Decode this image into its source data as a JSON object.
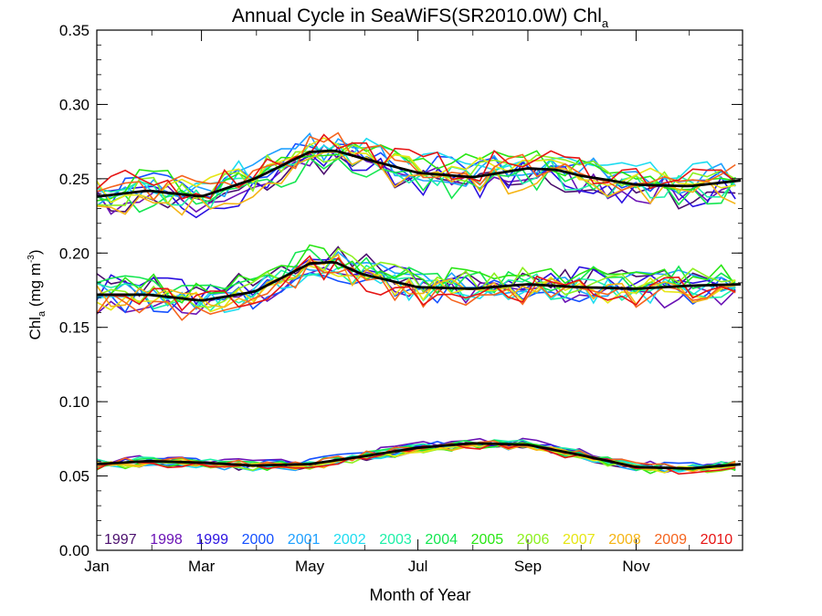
{
  "chart_data": {
    "type": "line",
    "title": "Annual Cycle in SeaWiFS(SR2010.0W) Chl",
    "title_subscript": "a",
    "xlabel": "Month of Year",
    "ylabel_main": "Chl",
    "ylabel_sub": "a",
    "ylabel_unit": " (mg m",
    "ylabel_sup": "-3",
    "ylabel_close": ")",
    "xlim": [
      1,
      365
    ],
    "ylim": [
      0,
      0.35
    ],
    "x_ticks": [
      {
        "label": "Jan",
        "day": 1
      },
      {
        "label": "Mar",
        "day": 60
      },
      {
        "label": "May",
        "day": 121
      },
      {
        "label": "Jul",
        "day": 182
      },
      {
        "label": "Sep",
        "day": 244
      },
      {
        "label": "Nov",
        "day": 305
      }
    ],
    "y_ticks": [
      "0.00",
      "0.05",
      "0.10",
      "0.15",
      "0.20",
      "0.25",
      "0.30",
      "0.35"
    ],
    "y_tick_values": [
      0,
      0.05,
      0.1,
      0.15,
      0.2,
      0.25,
      0.3,
      0.35
    ],
    "grid": false,
    "legend_placement": "bottom",
    "years": [
      {
        "label": "1997",
        "color": "#4b0f6e"
      },
      {
        "label": "1998",
        "color": "#6a12b5"
      },
      {
        "label": "1999",
        "color": "#2a10e0"
      },
      {
        "label": "2000",
        "color": "#1450ff"
      },
      {
        "label": "2001",
        "color": "#1ea0ff"
      },
      {
        "label": "2002",
        "color": "#1edcf0"
      },
      {
        "label": "2003",
        "color": "#1ef0a8"
      },
      {
        "label": "2004",
        "color": "#14e650"
      },
      {
        "label": "2005",
        "color": "#28e614"
      },
      {
        "label": "2006",
        "color": "#8cf01e"
      },
      {
        "label": "2007",
        "color": "#e6e614"
      },
      {
        "label": "2008",
        "color": "#f5b414"
      },
      {
        "label": "2009",
        "color": "#f5641e"
      },
      {
        "label": "2010",
        "color": "#e61414"
      }
    ],
    "groups": [
      {
        "name": "upper",
        "mean_x": [
          1,
          30,
          60,
          90,
          121,
          135,
          150,
          182,
          213,
          244,
          260,
          274,
          305,
          335,
          365
        ],
        "mean_y": [
          0.238,
          0.242,
          0.238,
          0.25,
          0.268,
          0.269,
          0.264,
          0.254,
          0.251,
          0.257,
          0.256,
          0.252,
          0.246,
          0.245,
          0.249
        ]
      },
      {
        "name": "middle",
        "mean_x": [
          1,
          30,
          60,
          90,
          121,
          135,
          150,
          182,
          213,
          244,
          274,
          305,
          335,
          365
        ],
        "mean_y": [
          0.172,
          0.172,
          0.168,
          0.174,
          0.193,
          0.194,
          0.186,
          0.177,
          0.176,
          0.179,
          0.177,
          0.176,
          0.178,
          0.179
        ]
      },
      {
        "name": "lower",
        "mean_x": [
          1,
          30,
          60,
          90,
          121,
          150,
          182,
          213,
          244,
          274,
          305,
          335,
          365
        ],
        "mean_y": [
          0.058,
          0.06,
          0.059,
          0.057,
          0.058,
          0.063,
          0.069,
          0.072,
          0.071,
          0.064,
          0.056,
          0.055,
          0.058
        ]
      }
    ]
  }
}
